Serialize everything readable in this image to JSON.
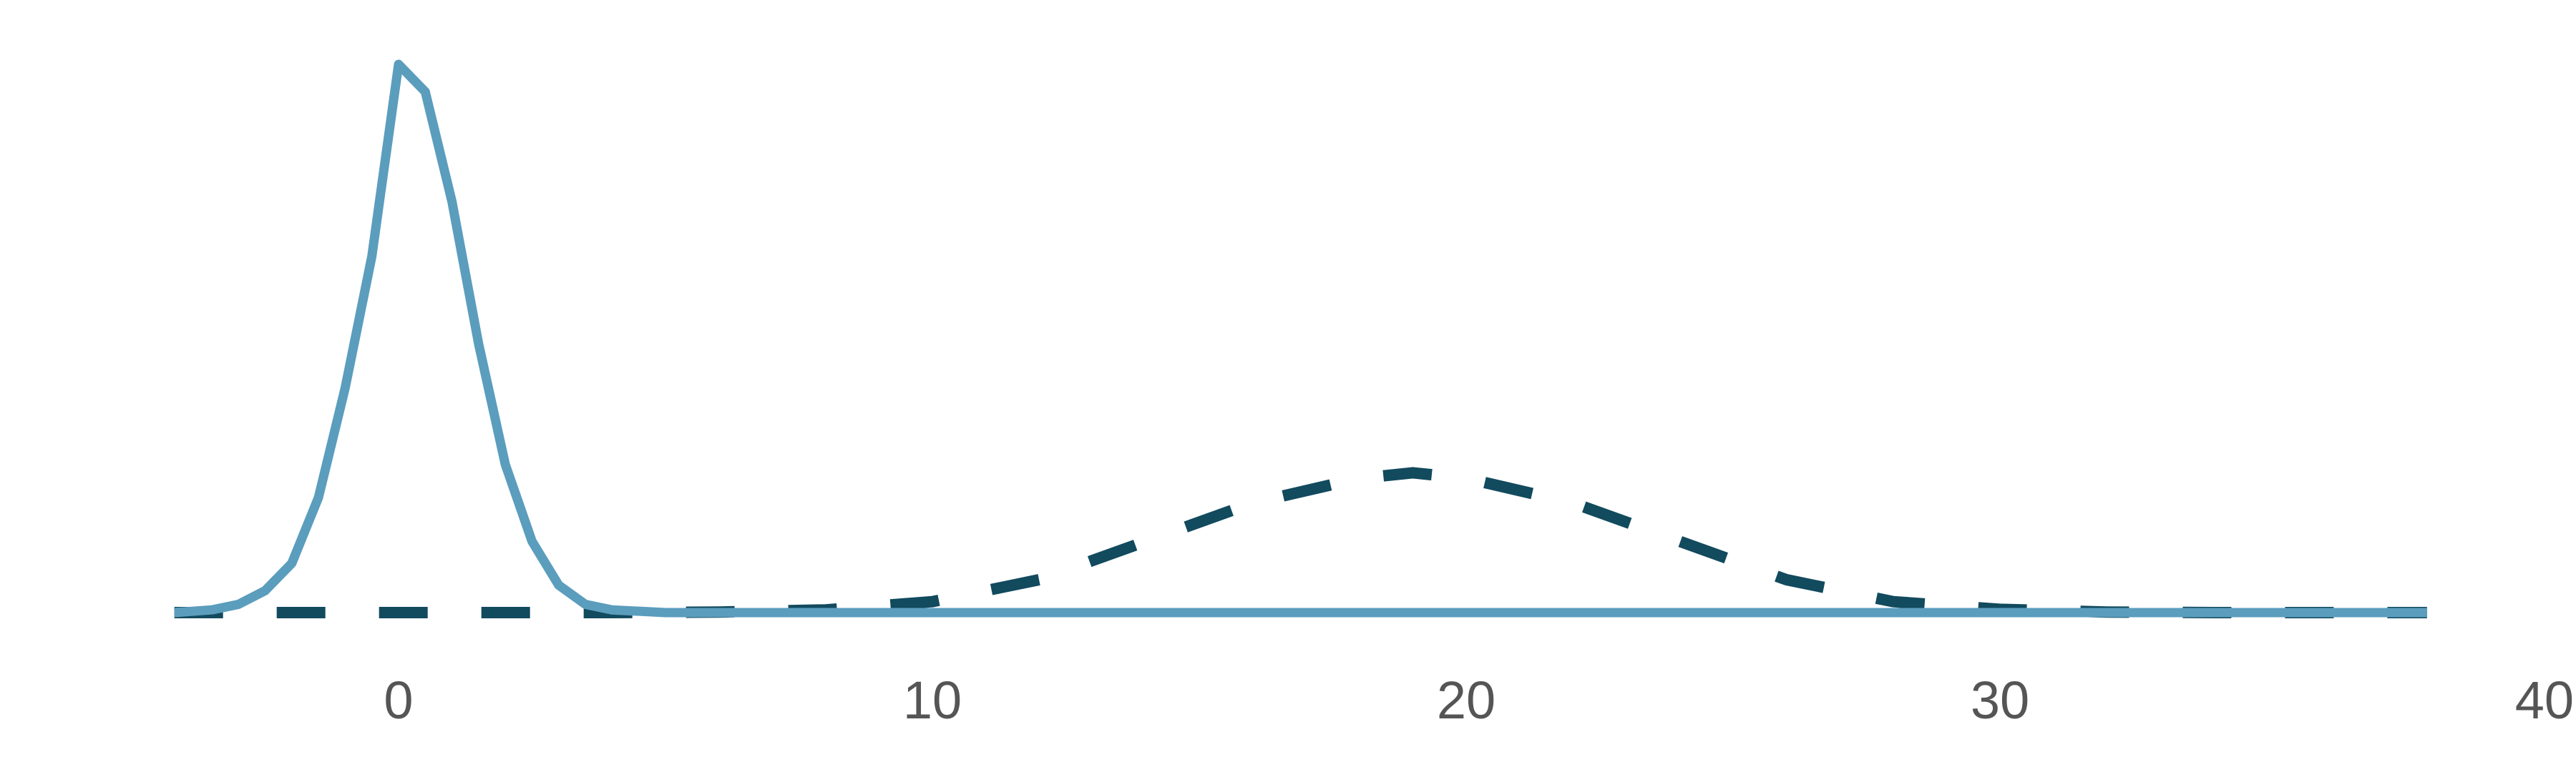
{
  "chart_data": {
    "type": "line",
    "x_ticks": [
      0,
      10,
      20,
      30,
      40
    ],
    "xlim": [
      -4.2,
      40
    ],
    "ylim": [
      0,
      1
    ],
    "grid": false,
    "series": [
      {
        "style": "solid",
        "color": "#5b9dbd",
        "x": [
          -4.2,
          -3.5,
          -3.0,
          -2.5,
          -2.0,
          -1.5,
          -1.0,
          -0.5,
          0.0,
          0.5,
          1.0,
          1.5,
          2.0,
          2.5,
          3.0,
          3.5,
          4.0,
          5.0,
          10.0,
          20.0,
          30.0,
          38.0
        ],
        "y": [
          0.0,
          0.005,
          0.015,
          0.04,
          0.09,
          0.21,
          0.41,
          0.65,
          1.0,
          0.95,
          0.75,
          0.49,
          0.27,
          0.13,
          0.05,
          0.015,
          0.005,
          0.0,
          0.0,
          0.0,
          0.0,
          0.0
        ]
      },
      {
        "style": "dashed",
        "color": "#124a5e",
        "x": [
          -4.2,
          2.0,
          4.0,
          6.0,
          8.0,
          10.0,
          12.0,
          14.0,
          16.0,
          18.0,
          19.0,
          20.0,
          22.0,
          24.0,
          26.0,
          28.0,
          30.0,
          32.0,
          34.0,
          38.0
        ],
        "y": [
          0.0,
          0.0,
          0.0,
          0.001,
          0.005,
          0.02,
          0.06,
          0.13,
          0.2,
          0.245,
          0.255,
          0.245,
          0.2,
          0.13,
          0.06,
          0.02,
          0.006,
          0.001,
          0.0,
          0.0
        ]
      }
    ]
  }
}
